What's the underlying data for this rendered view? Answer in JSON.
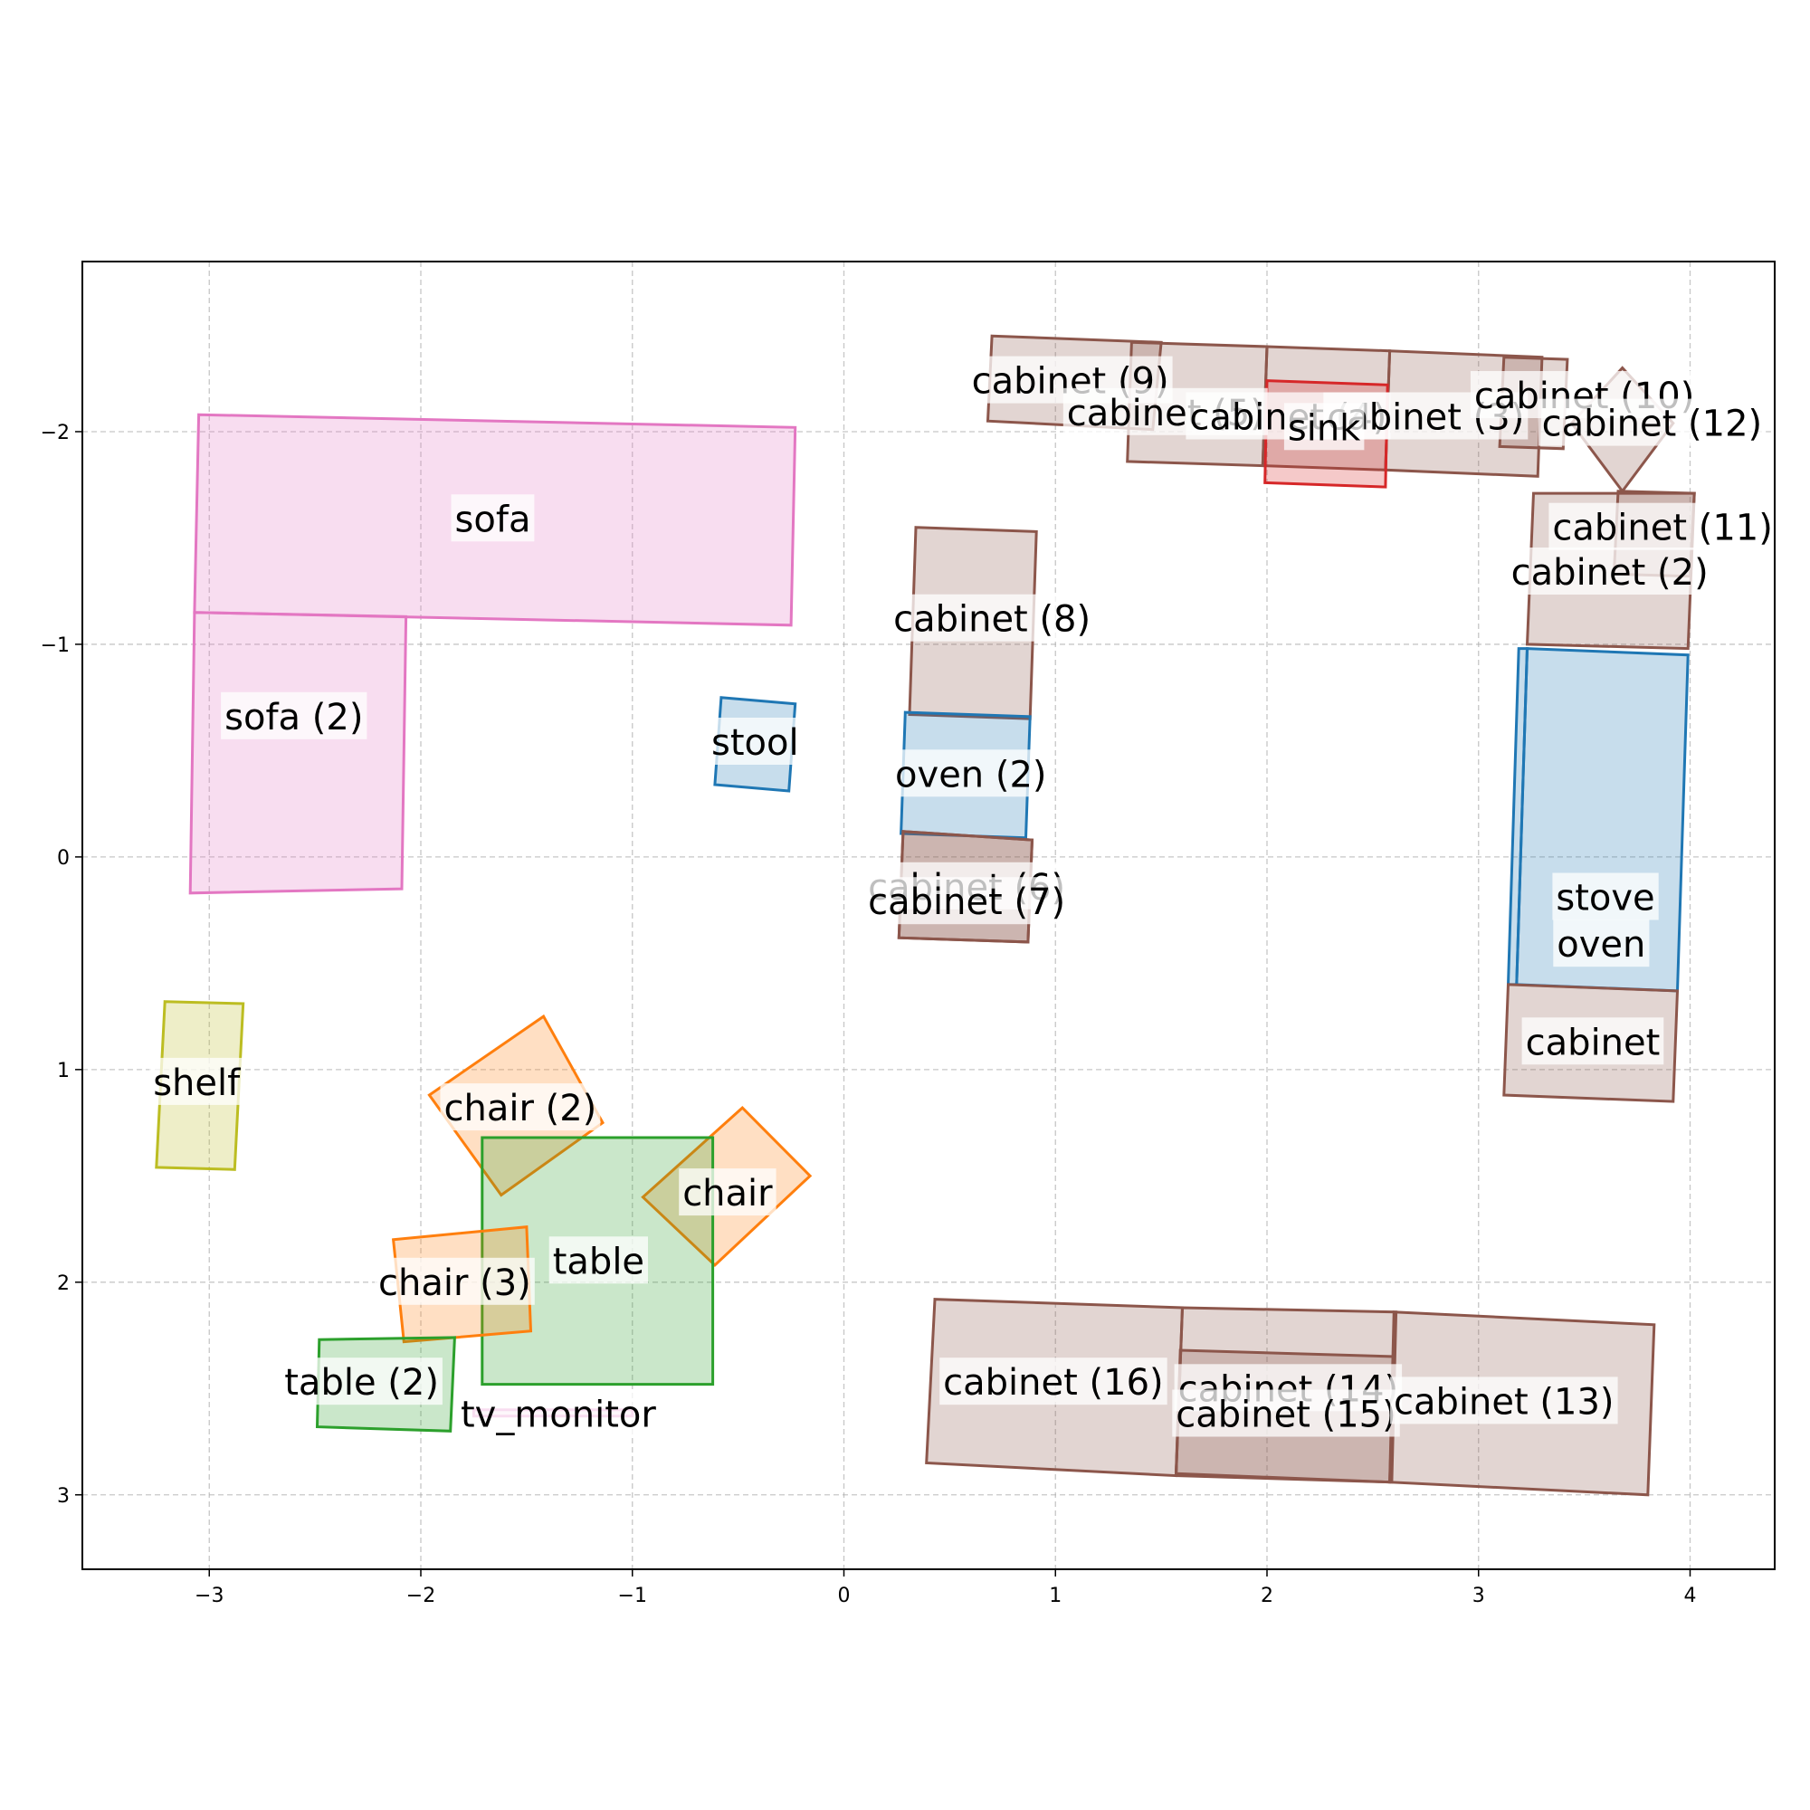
{
  "chart_data": {
    "type": "floor_plan",
    "title": "",
    "xlabel": "",
    "ylabel": "",
    "xlim": [
      -3.6,
      4.4
    ],
    "ylim": [
      3.35,
      -2.8
    ],
    "y_inverted": true,
    "grid": true,
    "x_ticks": [
      -3,
      -2,
      -1,
      0,
      1,
      2,
      3,
      4
    ],
    "y_ticks": [
      -2,
      -1,
      0,
      1,
      2,
      3
    ],
    "x_tick_labels": [
      "−3",
      "−2",
      "−1",
      "0",
      "1",
      "2",
      "3",
      "4"
    ],
    "y_tick_labels": [
      "−2",
      "−1",
      "0",
      "1",
      "2",
      "3"
    ],
    "categories": {
      "cabinet": "#8c564b",
      "sink": "#d62728",
      "sofa": "#e377c2",
      "stool": "#1f77b4",
      "oven": "#1f77b4",
      "stove": "#1f77b4",
      "shelf": "#bcbd22",
      "chair": "#ff7f0e",
      "table": "#2ca02c",
      "tv_monitor": "#e377c2"
    },
    "objects": [
      {
        "name": "sofa",
        "category": "sofa",
        "label": [
          -1.66,
          -1.59
        ],
        "polygon": [
          [
            -3.05,
            -2.08
          ],
          [
            -0.23,
            -2.02
          ],
          [
            -0.25,
            -1.09
          ],
          [
            -3.07,
            -1.15
          ]
        ]
      },
      {
        "name": "sofa (2)",
        "category": "sofa",
        "label": [
          -2.6,
          -0.66
        ],
        "polygon": [
          [
            -3.07,
            -1.15
          ],
          [
            -2.07,
            -1.13
          ],
          [
            -2.09,
            0.15
          ],
          [
            -3.09,
            0.17
          ]
        ]
      },
      {
        "name": "stool",
        "category": "stool",
        "label": [
          -0.42,
          -0.54
        ],
        "polygon": [
          [
            -0.58,
            -0.75
          ],
          [
            -0.23,
            -0.72
          ],
          [
            -0.26,
            -0.31
          ],
          [
            -0.61,
            -0.34
          ]
        ]
      },
      {
        "name": "cabinet (8)",
        "category": "cabinet",
        "label": [
          0.7,
          -1.12
        ],
        "polygon": [
          [
            0.34,
            -1.55
          ],
          [
            0.91,
            -1.53
          ],
          [
            0.88,
            -0.65
          ],
          [
            0.31,
            -0.67
          ]
        ]
      },
      {
        "name": "oven (2)",
        "category": "oven",
        "label": [
          0.6,
          -0.39
        ],
        "polygon": [
          [
            0.29,
            -0.68
          ],
          [
            0.88,
            -0.66
          ],
          [
            0.86,
            -0.09
          ],
          [
            0.27,
            -0.11
          ]
        ]
      },
      {
        "name": "cabinet (6)",
        "category": "cabinet",
        "label": [
          0.58,
          0.14
        ],
        "polygon": [
          [
            0.28,
            -0.12
          ],
          [
            0.89,
            -0.08
          ],
          [
            0.87,
            0.4
          ],
          [
            0.26,
            0.38
          ]
        ]
      },
      {
        "name": "cabinet (7)",
        "category": "cabinet",
        "label": [
          0.58,
          0.21
        ],
        "polygon": [
          [
            0.28,
            -0.12
          ],
          [
            0.89,
            -0.08
          ],
          [
            0.87,
            0.4
          ],
          [
            0.26,
            0.38
          ]
        ]
      },
      {
        "name": "cabinet (9)",
        "category": "cabinet",
        "label": [
          1.07,
          -2.24
        ],
        "polygon": [
          [
            0.7,
            -2.45
          ],
          [
            1.5,
            -2.42
          ],
          [
            1.46,
            -2.01
          ],
          [
            0.68,
            -2.05
          ]
        ]
      },
      {
        "name": "cabinet (5)",
        "category": "cabinet",
        "label": [
          1.52,
          -2.09
        ],
        "polygon": [
          [
            1.36,
            -2.42
          ],
          [
            2.0,
            -2.4
          ],
          [
            1.98,
            -1.84
          ],
          [
            1.34,
            -1.86
          ]
        ]
      },
      {
        "name": "cabinet (4)",
        "category": "cabinet",
        "label": [
          2.1,
          -2.07
        ],
        "polygon": [
          [
            2.0,
            -2.4
          ],
          [
            2.58,
            -2.38
          ],
          [
            2.56,
            -1.82
          ],
          [
            1.98,
            -1.84
          ]
        ]
      },
      {
        "name": "cabinet (3)",
        "category": "cabinet",
        "label": [
          2.75,
          -2.07
        ],
        "polygon": [
          [
            2.58,
            -2.38
          ],
          [
            3.3,
            -2.35
          ],
          [
            3.28,
            -1.79
          ],
          [
            2.56,
            -1.82
          ]
        ]
      },
      {
        "name": "sink",
        "category": "sink",
        "label": [
          2.27,
          -2.02
        ],
        "polygon": [
          [
            2.0,
            -2.24
          ],
          [
            2.57,
            -2.22
          ],
          [
            2.56,
            -1.74
          ],
          [
            1.99,
            -1.76
          ]
        ]
      },
      {
        "name": "cabinet (10)",
        "category": "cabinet",
        "label": [
          3.5,
          -2.17
        ],
        "polygon": [
          [
            3.12,
            -2.35
          ],
          [
            3.42,
            -2.34
          ],
          [
            3.4,
            -1.92
          ],
          [
            3.1,
            -1.93
          ]
        ]
      },
      {
        "name": "cabinet (12)",
        "category": "cabinet",
        "label": [
          3.82,
          -2.04
        ],
        "polygon": [
          [
            3.68,
            -2.3
          ],
          [
            3.92,
            -2.04
          ],
          [
            3.68,
            -1.72
          ],
          [
            3.44,
            -2.04
          ]
        ]
      },
      {
        "name": "cabinet (11)",
        "category": "cabinet",
        "label": [
          3.87,
          -1.55
        ],
        "polygon": [
          [
            3.66,
            -1.72
          ],
          [
            4.02,
            -1.71
          ],
          [
            4.0,
            -1.32
          ],
          [
            3.64,
            -1.33
          ]
        ]
      },
      {
        "name": "cabinet (2)",
        "category": "cabinet",
        "label": [
          3.62,
          -1.34
        ],
        "polygon": [
          [
            3.26,
            -1.71
          ],
          [
            4.02,
            -1.71
          ],
          [
            3.99,
            -0.98
          ],
          [
            3.23,
            -1.0
          ]
        ]
      },
      {
        "name": "stove",
        "category": "stove",
        "label": [
          3.6,
          0.19
        ],
        "polygon": [
          [
            3.23,
            -0.98
          ],
          [
            3.99,
            -0.95
          ],
          [
            3.94,
            0.63
          ],
          [
            3.18,
            0.6
          ]
        ]
      },
      {
        "name": "oven",
        "category": "oven",
        "label": [
          3.58,
          0.41
        ],
        "polygon": [
          [
            3.19,
            -0.98
          ],
          [
            3.23,
            -0.98
          ],
          [
            3.18,
            0.6
          ],
          [
            3.14,
            0.6
          ]
        ]
      },
      {
        "name": "cabinet",
        "category": "cabinet",
        "label": [
          3.54,
          0.87
        ],
        "polygon": [
          [
            3.14,
            0.6
          ],
          [
            3.94,
            0.63
          ],
          [
            3.92,
            1.15
          ],
          [
            3.12,
            1.12
          ]
        ]
      },
      {
        "name": "shelf",
        "category": "shelf",
        "label": [
          -3.06,
          1.06
        ],
        "polygon": [
          [
            -3.21,
            0.68
          ],
          [
            -2.84,
            0.69
          ],
          [
            -2.88,
            1.47
          ],
          [
            -3.25,
            1.46
          ]
        ]
      },
      {
        "name": "chair (2)",
        "category": "chair",
        "label": [
          -1.53,
          1.18
        ],
        "polygon": [
          [
            -1.42,
            0.75
          ],
          [
            -1.14,
            1.25
          ],
          [
            -1.62,
            1.59
          ],
          [
            -1.96,
            1.12
          ]
        ]
      },
      {
        "name": "chair",
        "category": "chair",
        "label": [
          -0.55,
          1.58
        ],
        "polygon": [
          [
            -0.48,
            1.18
          ],
          [
            -0.16,
            1.5
          ],
          [
            -0.61,
            1.92
          ],
          [
            -0.95,
            1.6
          ]
        ]
      },
      {
        "name": "table",
        "category": "table",
        "label": [
          -1.16,
          1.9
        ],
        "polygon": [
          [
            -1.71,
            1.32
          ],
          [
            -0.62,
            1.32
          ],
          [
            -0.62,
            2.48
          ],
          [
            -1.71,
            2.48
          ]
        ]
      },
      {
        "name": "chair (3)",
        "category": "chair",
        "label": [
          -1.84,
          2.0
        ],
        "polygon": [
          [
            -2.13,
            1.8
          ],
          [
            -1.5,
            1.74
          ],
          [
            -1.48,
            2.23
          ],
          [
            -2.08,
            2.28
          ]
        ]
      },
      {
        "name": "table (2)",
        "category": "table",
        "label": [
          -2.28,
          2.47
        ],
        "polygon": [
          [
            -2.48,
            2.27
          ],
          [
            -1.84,
            2.26
          ],
          [
            -1.86,
            2.7
          ],
          [
            -2.49,
            2.68
          ]
        ]
      },
      {
        "name": "tv_monitor",
        "category": "tv_monitor",
        "label": [
          -1.35,
          2.62
        ],
        "polygon": [
          [
            -1.75,
            2.6
          ],
          [
            -1.0,
            2.6
          ],
          [
            -1.0,
            2.63
          ],
          [
            -1.75,
            2.63
          ]
        ]
      },
      {
        "name": "cabinet (16)",
        "category": "cabinet",
        "label": [
          0.99,
          2.47
        ],
        "polygon": [
          [
            0.43,
            2.08
          ],
          [
            1.6,
            2.12
          ],
          [
            1.57,
            2.91
          ],
          [
            0.39,
            2.85
          ]
        ]
      },
      {
        "name": "cabinet (14)",
        "category": "cabinet",
        "label": [
          2.1,
          2.5
        ],
        "polygon": [
          [
            1.6,
            2.12
          ],
          [
            2.61,
            2.14
          ],
          [
            2.59,
            2.94
          ],
          [
            1.57,
            2.91
          ]
        ]
      },
      {
        "name": "cabinet (15)",
        "category": "cabinet",
        "label": [
          2.09,
          2.62
        ],
        "polygon": [
          [
            1.59,
            2.32
          ],
          [
            2.6,
            2.35
          ],
          [
            2.58,
            2.94
          ],
          [
            1.57,
            2.9
          ]
        ]
      },
      {
        "name": "cabinet (13)",
        "category": "cabinet",
        "label": [
          3.12,
          2.56
        ],
        "polygon": [
          [
            2.6,
            2.14
          ],
          [
            3.83,
            2.2
          ],
          [
            3.8,
            3.0
          ],
          [
            2.58,
            2.94
          ]
        ]
      }
    ]
  }
}
